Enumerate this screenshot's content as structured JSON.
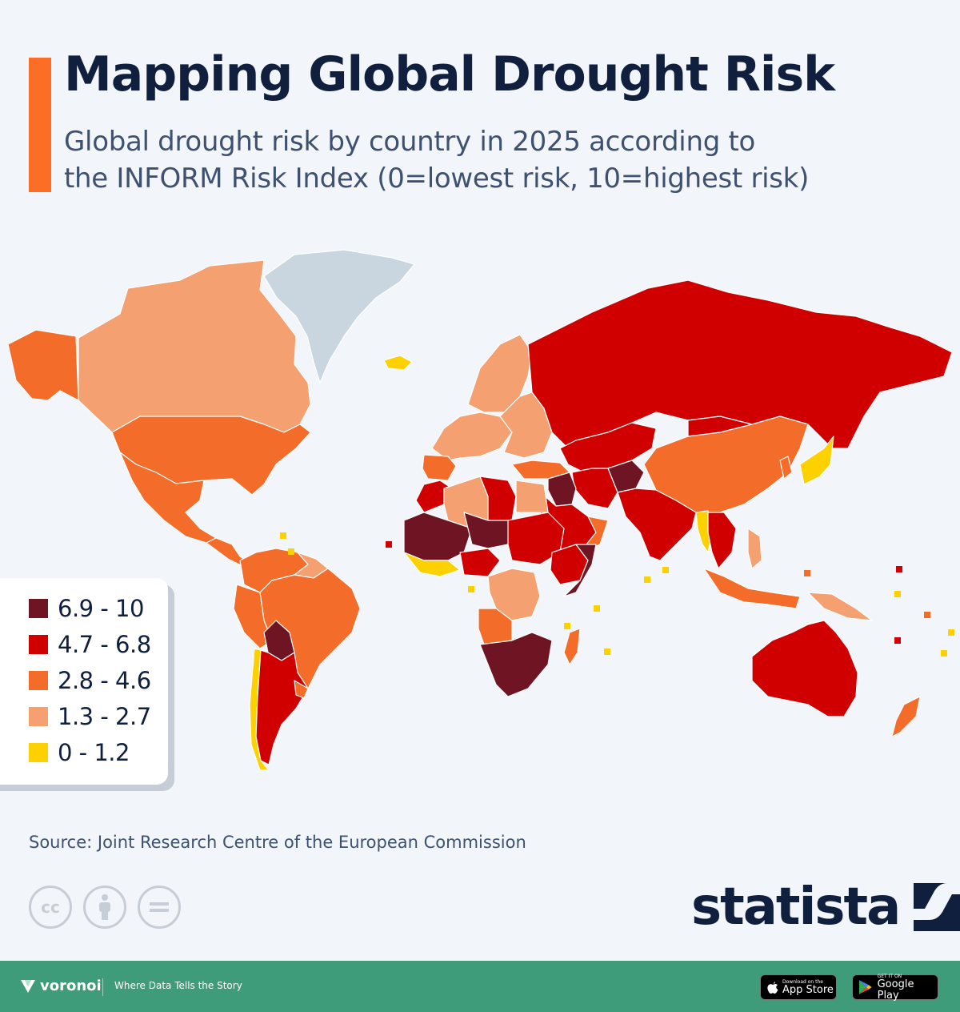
{
  "title": "Mapping Global Drought Risk",
  "subtitle": {
    "line1": "Global drought risk by country in 2025 according to",
    "line2": "the INFORM Risk Index (0=lowest risk, 10=highest risk)"
  },
  "colors": {
    "accent": "#fc6d26",
    "ocean": "#f2f5f9",
    "no_data": "#c9d5df",
    "border": "#ffffff"
  },
  "legend": [
    {
      "label": "6.9 - 10",
      "color": "#6e1423"
    },
    {
      "label": "4.7 - 6.8",
      "color": "#d00000"
    },
    {
      "label": "2.8 - 4.6",
      "color": "#f36c2a"
    },
    {
      "label": "1.3 - 2.7",
      "color": "#f5a070"
    },
    {
      "label": "0 - 1.2",
      "color": "#fdd000"
    }
  ],
  "map": {
    "regions": [
      {
        "name": "Greenland",
        "class": "no_data"
      },
      {
        "name": "Alaska",
        "class": "2.8-4.6"
      },
      {
        "name": "Canada",
        "class": "1.3-2.7"
      },
      {
        "name": "United States",
        "class": "2.8-4.6"
      },
      {
        "name": "Mexico",
        "class": "2.8-4.6"
      },
      {
        "name": "Central America",
        "class": "2.8-4.6"
      },
      {
        "name": "Colombia / Venezuela",
        "class": "2.8-4.6"
      },
      {
        "name": "Guianas",
        "class": "1.3-2.7"
      },
      {
        "name": "Brazil",
        "class": "2.8-4.6"
      },
      {
        "name": "Peru",
        "class": "2.8-4.6"
      },
      {
        "name": "Bolivia",
        "class": "6.9-10"
      },
      {
        "name": "Chile",
        "class": "0-1.2"
      },
      {
        "name": "Argentina",
        "class": "4.7-6.8"
      },
      {
        "name": "Uruguay",
        "class": "2.8-4.6"
      },
      {
        "name": "Iceland",
        "class": "0-1.2"
      },
      {
        "name": "Scandinavia",
        "class": "1.3-2.7"
      },
      {
        "name": "Western Europe",
        "class": "1.3-2.7"
      },
      {
        "name": "Iberia",
        "class": "2.8-4.6"
      },
      {
        "name": "Eastern Europe",
        "class": "1.3-2.7"
      },
      {
        "name": "Russia",
        "class": "4.7-6.8"
      },
      {
        "name": "Central Asia",
        "class": "4.7-6.8"
      },
      {
        "name": "Afghanistan",
        "class": "6.9-10"
      },
      {
        "name": "Iran",
        "class": "4.7-6.8"
      },
      {
        "name": "Turkey",
        "class": "2.8-4.6"
      },
      {
        "name": "Iraq / Syria",
        "class": "6.9-10"
      },
      {
        "name": "Arabian Peninsula",
        "class": "4.7-6.8"
      },
      {
        "name": "Oman",
        "class": "2.8-4.6"
      },
      {
        "name": "India / Pakistan",
        "class": "4.7-6.8"
      },
      {
        "name": "China",
        "class": "2.8-4.6"
      },
      {
        "name": "Mongolia",
        "class": "4.7-6.8"
      },
      {
        "name": "Japan",
        "class": "0-1.2"
      },
      {
        "name": "Korea",
        "class": "2.8-4.6"
      },
      {
        "name": "Myanmar",
        "class": "0-1.2"
      },
      {
        "name": "Southeast Asia",
        "class": "4.7-6.8"
      },
      {
        "name": "Indonesia",
        "class": "2.8-4.6"
      },
      {
        "name": "Philippines",
        "class": "1.3-2.7"
      },
      {
        "name": "Papua New Guinea",
        "class": "1.3-2.7"
      },
      {
        "name": "Australia",
        "class": "4.7-6.8"
      },
      {
        "name": "New Zealand",
        "class": "2.8-4.6"
      },
      {
        "name": "Morocco",
        "class": "4.7-6.8"
      },
      {
        "name": "Algeria",
        "class": "1.3-2.7"
      },
      {
        "name": "Libya",
        "class": "4.7-6.8"
      },
      {
        "name": "Egypt",
        "class": "1.3-2.7"
      },
      {
        "name": "Sahel West",
        "class": "6.9-10"
      },
      {
        "name": "Niger",
        "class": "6.9-10"
      },
      {
        "name": "Chad / Sudan",
        "class": "4.7-6.8"
      },
      {
        "name": "West Africa coast",
        "class": "0-1.2"
      },
      {
        "name": "Nigeria",
        "class": "4.7-6.8"
      },
      {
        "name": "Ethiopia",
        "class": "4.7-6.8"
      },
      {
        "name": "Somalia",
        "class": "6.9-10"
      },
      {
        "name": "DR Congo",
        "class": "1.3-2.7"
      },
      {
        "name": "Angola",
        "class": "2.8-4.6"
      },
      {
        "name": "Namibia / South Africa",
        "class": "6.9-10"
      },
      {
        "name": "Madagascar",
        "class": "2.8-4.6"
      }
    ]
  },
  "source": "Source: Joint Research Centre of the European Commission",
  "license_icons": [
    "cc-icon",
    "attribution-icon",
    "no-derivatives-icon"
  ],
  "brand": "statista",
  "footer": {
    "brand_name": "voronoi",
    "tagline": "Where Data Tells the Story",
    "app_store_small": "Download on the",
    "app_store_big": "App Store",
    "google_play_small": "GET IT ON",
    "google_play_big": "Google Play"
  }
}
